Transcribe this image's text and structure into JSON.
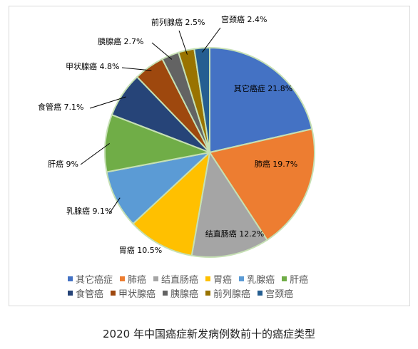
{
  "chart_data": {
    "type": "pie",
    "title": "",
    "slices": [
      {
        "name": "其它癌症",
        "value": 21.8,
        "label": "其它癌症 21.8%",
        "color": "#4472C4"
      },
      {
        "name": "肺癌",
        "value": 19.7,
        "label": "肺癌 19.7%",
        "color": "#ED7D31"
      },
      {
        "name": "结直肠癌",
        "value": 12.2,
        "label": "结直肠癌 12.2%",
        "color": "#A5A5A5"
      },
      {
        "name": "胃癌",
        "value": 10.5,
        "label": "胃癌 10.5%",
        "color": "#FFC000"
      },
      {
        "name": "乳腺癌",
        "value": 9.1,
        "label": "乳腺癌 9.1%",
        "color": "#5B9BD5"
      },
      {
        "name": "肝癌",
        "value": 9,
        "label": "肝癌 9%",
        "color": "#70AD47"
      },
      {
        "name": "食管癌",
        "value": 7.1,
        "label": "食管癌 7.1%",
        "color": "#264478"
      },
      {
        "name": "甲状腺癌",
        "value": 4.8,
        "label": "甲状腺癌 4.8%",
        "color": "#9E480E"
      },
      {
        "name": "胰腺癌",
        "value": 2.7,
        "label": "胰腺癌 2.7%",
        "color": "#636363"
      },
      {
        "name": "前列腺癌",
        "value": 2.5,
        "label": "前列腺癌 2.5%",
        "color": "#997300"
      },
      {
        "name": "宫颈癌",
        "value": 2.4,
        "label": "宫颈癌 2.4%",
        "color": "#255E91"
      }
    ],
    "legend_placement": "bottom",
    "slice_border_color": "#C6E0B4"
  },
  "legend": {
    "row1": [
      {
        "name": "其它癌症",
        "color": "#4472C4"
      },
      {
        "name": "肺癌",
        "color": "#ED7D31"
      },
      {
        "name": "结直肠癌",
        "color": "#A5A5A5"
      },
      {
        "name": "胃癌",
        "color": "#FFC000"
      },
      {
        "name": "乳腺癌",
        "color": "#5B9BD5"
      },
      {
        "name": "肝癌",
        "color": "#70AD47"
      }
    ],
    "row2": [
      {
        "name": "食管癌",
        "color": "#264478"
      },
      {
        "name": "甲状腺癌",
        "color": "#9E480E"
      },
      {
        "name": "胰腺癌",
        "color": "#636363"
      },
      {
        "name": "前列腺癌",
        "color": "#997300"
      },
      {
        "name": "宫颈癌",
        "color": "#255E91"
      }
    ]
  },
  "caption": "2020 年中国癌症新发病例数前十的癌症类型"
}
